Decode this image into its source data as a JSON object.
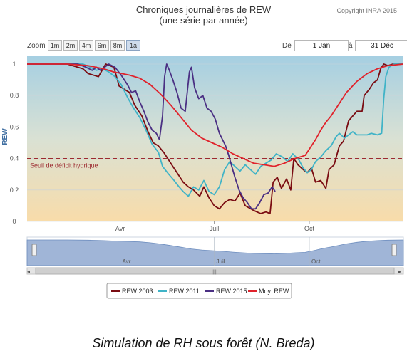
{
  "header": {
    "title_line1": "Chroniques journalières de REW",
    "title_line2": "(une série par année)",
    "copyright": "Copyright INRA 2015"
  },
  "zoom": {
    "label": "Zoom",
    "buttons": [
      "1m",
      "2m",
      "4m",
      "6m",
      "8m",
      "1a"
    ],
    "active": "1a"
  },
  "range": {
    "from_label": "De",
    "from_value": "1 Jan",
    "to_label": "à",
    "to_value": "31 Déc"
  },
  "caption": "Simulation de RH sous forêt (N. Breda)",
  "colors": {
    "rew2003": "#7a0c12",
    "rew2011": "#3fb3c7",
    "rew2015": "#4a2f83",
    "moy": "#e0222b",
    "threshold": "#9c2a30"
  },
  "chart_data": {
    "type": "line",
    "title": "Chroniques journalières de REW",
    "subtitle": "(une série par année)",
    "ylabel": "REW",
    "xlabel": "",
    "xlim": [
      1,
      365
    ],
    "ylim": [
      0,
      1
    ],
    "y_ticks": [
      "0",
      "0.2",
      "0.4",
      "0.6",
      "0.8",
      "1"
    ],
    "x_ticks": [
      {
        "label": "Avr",
        "day": 91
      },
      {
        "label": "Juil",
        "day": 182
      },
      {
        "label": "Oct",
        "day": 274
      }
    ],
    "grid": true,
    "legend_position": "bottom",
    "threshold": {
      "value": 0.4,
      "label": "Seuil de déficit hydrique"
    },
    "series": [
      {
        "name": "REW 2003",
        "color": "#7a0c12",
        "points": [
          [
            1,
            1
          ],
          [
            40,
            1
          ],
          [
            55,
            0.97
          ],
          [
            60,
            0.94
          ],
          [
            70,
            0.92
          ],
          [
            77,
            1
          ],
          [
            85,
            0.98
          ],
          [
            90,
            0.86
          ],
          [
            100,
            0.82
          ],
          [
            105,
            0.74
          ],
          [
            112,
            0.67
          ],
          [
            118,
            0.57
          ],
          [
            123,
            0.5
          ],
          [
            128,
            0.48
          ],
          [
            133,
            0.44
          ],
          [
            137,
            0.4
          ],
          [
            142,
            0.35
          ],
          [
            147,
            0.3
          ],
          [
            152,
            0.25
          ],
          [
            157,
            0.22
          ],
          [
            162,
            0.2
          ],
          [
            168,
            0.16
          ],
          [
            172,
            0.22
          ],
          [
            177,
            0.15
          ],
          [
            182,
            0.1
          ],
          [
            187,
            0.08
          ],
          [
            192,
            0.12
          ],
          [
            197,
            0.14
          ],
          [
            202,
            0.13
          ],
          [
            207,
            0.18
          ],
          [
            212,
            0.1
          ],
          [
            220,
            0.07
          ],
          [
            227,
            0.05
          ],
          [
            232,
            0.06
          ],
          [
            236,
            0.05
          ],
          [
            239,
            0.25
          ],
          [
            243,
            0.28
          ],
          [
            247,
            0.21
          ],
          [
            252,
            0.27
          ],
          [
            256,
            0.2
          ],
          [
            259,
            0.4
          ],
          [
            263,
            0.36
          ],
          [
            268,
            0.33
          ],
          [
            272,
            0.31
          ],
          [
            276,
            0.34
          ],
          [
            280,
            0.25
          ],
          [
            285,
            0.26
          ],
          [
            290,
            0.21
          ],
          [
            293,
            0.33
          ],
          [
            298,
            0.36
          ],
          [
            303,
            0.48
          ],
          [
            307,
            0.51
          ],
          [
            312,
            0.64
          ],
          [
            316,
            0.67
          ],
          [
            320,
            0.7
          ],
          [
            325,
            0.7
          ],
          [
            327,
            0.8
          ],
          [
            332,
            0.84
          ],
          [
            336,
            0.88
          ],
          [
            340,
            0.9
          ],
          [
            343,
            0.97
          ],
          [
            346,
            1
          ],
          [
            350,
            0.99
          ],
          [
            355,
            1
          ],
          [
            365,
            1
          ]
        ]
      },
      {
        "name": "REW 2011",
        "color": "#3fb3c7",
        "points": [
          [
            1,
            1
          ],
          [
            55,
            1
          ],
          [
            62,
            0.98
          ],
          [
            68,
            0.96
          ],
          [
            74,
            0.97
          ],
          [
            80,
            0.95
          ],
          [
            86,
            0.92
          ],
          [
            92,
            0.87
          ],
          [
            98,
            0.79
          ],
          [
            104,
            0.72
          ],
          [
            110,
            0.66
          ],
          [
            116,
            0.58
          ],
          [
            122,
            0.49
          ],
          [
            128,
            0.44
          ],
          [
            132,
            0.35
          ],
          [
            138,
            0.3
          ],
          [
            142,
            0.27
          ],
          [
            148,
            0.22
          ],
          [
            152,
            0.19
          ],
          [
            157,
            0.16
          ],
          [
            162,
            0.22
          ],
          [
            167,
            0.2
          ],
          [
            172,
            0.26
          ],
          [
            177,
            0.19
          ],
          [
            182,
            0.17
          ],
          [
            187,
            0.22
          ],
          [
            192,
            0.33
          ],
          [
            197,
            0.38
          ],
          [
            202,
            0.35
          ],
          [
            207,
            0.32
          ],
          [
            212,
            0.36
          ],
          [
            217,
            0.33
          ],
          [
            222,
            0.3
          ],
          [
            227,
            0.35
          ],
          [
            232,
            0.37
          ],
          [
            237,
            0.39
          ],
          [
            242,
            0.43
          ],
          [
            248,
            0.41
          ],
          [
            253,
            0.38
          ],
          [
            258,
            0.43
          ],
          [
            264,
            0.39
          ],
          [
            268,
            0.34
          ],
          [
            272,
            0.31
          ],
          [
            276,
            0.33
          ],
          [
            280,
            0.38
          ],
          [
            285,
            0.41
          ],
          [
            290,
            0.45
          ],
          [
            295,
            0.48
          ],
          [
            300,
            0.54
          ],
          [
            303,
            0.56
          ],
          [
            308,
            0.53
          ],
          [
            312,
            0.55
          ],
          [
            316,
            0.57
          ],
          [
            320,
            0.55
          ],
          [
            325,
            0.55
          ],
          [
            330,
            0.55
          ],
          [
            334,
            0.56
          ],
          [
            340,
            0.55
          ],
          [
            344,
            0.56
          ],
          [
            346,
            0.78
          ],
          [
            348,
            0.92
          ],
          [
            351,
            0.98
          ],
          [
            356,
            1
          ],
          [
            365,
            1
          ]
        ]
      },
      {
        "name": "REW 2015",
        "color": "#4a2f83",
        "points": [
          [
            1,
            1
          ],
          [
            50,
            1
          ],
          [
            58,
            0.98
          ],
          [
            64,
            0.96
          ],
          [
            68,
            0.98
          ],
          [
            72,
            0.96
          ],
          [
            80,
            1
          ],
          [
            86,
            0.98
          ],
          [
            92,
            0.93
          ],
          [
            98,
            0.87
          ],
          [
            102,
            0.82
          ],
          [
            106,
            0.83
          ],
          [
            110,
            0.76
          ],
          [
            114,
            0.7
          ],
          [
            118,
            0.63
          ],
          [
            122,
            0.58
          ],
          [
            126,
            0.56
          ],
          [
            129,
            0.52
          ],
          [
            132,
            0.67
          ],
          [
            134,
            0.92
          ],
          [
            136,
            1
          ],
          [
            138,
            0.97
          ],
          [
            142,
            0.9
          ],
          [
            146,
            0.82
          ],
          [
            150,
            0.72
          ],
          [
            154,
            0.7
          ],
          [
            158,
            0.95
          ],
          [
            160,
            0.98
          ],
          [
            163,
            0.85
          ],
          [
            167,
            0.78
          ],
          [
            171,
            0.8
          ],
          [
            175,
            0.72
          ],
          [
            179,
            0.7
          ],
          [
            183,
            0.65
          ],
          [
            187,
            0.56
          ],
          [
            190,
            0.52
          ],
          [
            193,
            0.48
          ],
          [
            196,
            0.42
          ],
          [
            199,
            0.35
          ],
          [
            202,
            0.28
          ],
          [
            206,
            0.2
          ],
          [
            210,
            0.15
          ],
          [
            214,
            0.12
          ],
          [
            218,
            0.08
          ],
          [
            222,
            0.08
          ],
          [
            226,
            0.12
          ],
          [
            230,
            0.17
          ],
          [
            234,
            0.18
          ],
          [
            238,
            0.22
          ],
          [
            241,
            0.19
          ]
        ]
      },
      {
        "name": "Moy. REW",
        "color": "#e0222b",
        "points": [
          [
            1,
            1
          ],
          [
            40,
            1
          ],
          [
            60,
            0.99
          ],
          [
            75,
            0.97
          ],
          [
            85,
            0.95
          ],
          [
            100,
            0.93
          ],
          [
            110,
            0.91
          ],
          [
            120,
            0.87
          ],
          [
            130,
            0.81
          ],
          [
            140,
            0.74
          ],
          [
            150,
            0.66
          ],
          [
            160,
            0.58
          ],
          [
            170,
            0.53
          ],
          [
            180,
            0.5
          ],
          [
            190,
            0.47
          ],
          [
            200,
            0.43
          ],
          [
            210,
            0.4
          ],
          [
            220,
            0.37
          ],
          [
            230,
            0.36
          ],
          [
            240,
            0.35
          ],
          [
            250,
            0.37
          ],
          [
            260,
            0.4
          ],
          [
            270,
            0.42
          ],
          [
            275,
            0.47
          ],
          [
            280,
            0.52
          ],
          [
            285,
            0.58
          ],
          [
            290,
            0.63
          ],
          [
            295,
            0.67
          ],
          [
            300,
            0.72
          ],
          [
            305,
            0.77
          ],
          [
            310,
            0.82
          ],
          [
            320,
            0.89
          ],
          [
            330,
            0.94
          ],
          [
            340,
            0.97
          ],
          [
            350,
            0.99
          ],
          [
            365,
            1
          ]
        ]
      }
    ]
  }
}
